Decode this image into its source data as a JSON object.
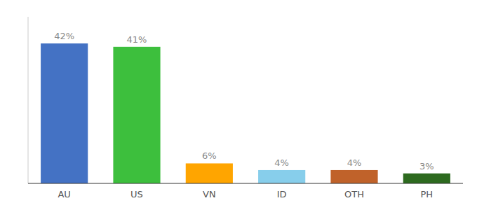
{
  "chart_data": {
    "type": "bar",
    "categories": [
      "AU",
      "US",
      "VN",
      "ID",
      "OTH",
      "PH"
    ],
    "values": [
      42,
      41,
      6,
      4,
      4,
      3
    ],
    "value_labels": [
      "42%",
      "41%",
      "6%",
      "4%",
      "4%",
      "3%"
    ],
    "colors": [
      "#4472C4",
      "#3DBF3D",
      "#FFA500",
      "#87CEEB",
      "#C0622A",
      "#2D6A1F"
    ],
    "ylim": [
      0,
      50
    ],
    "data_labels": true,
    "tick_labels": "x"
  }
}
